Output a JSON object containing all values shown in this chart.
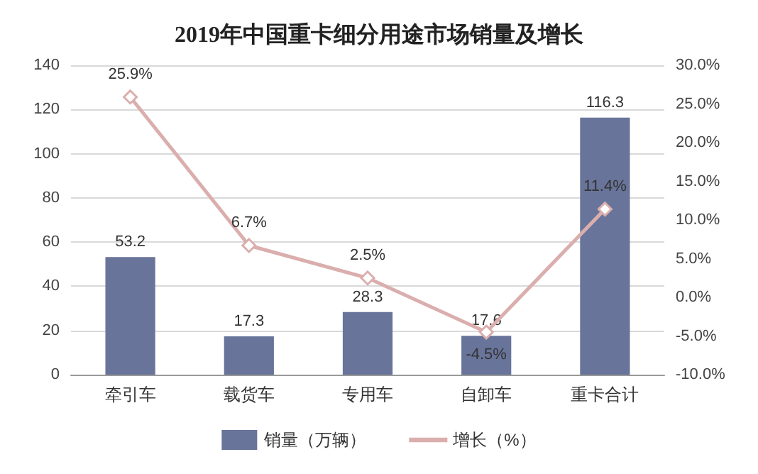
{
  "chart_data": {
    "type": "bar",
    "title": "2019年中国重卡细分用途市场销量及增长",
    "categories": [
      "牵引车",
      "载货车",
      "专用车",
      "自卸车",
      "重卡合计"
    ],
    "series": [
      {
        "name": "销量（万辆）",
        "color": "#68749a",
        "values": [
          53.2,
          17.3,
          28.3,
          17.6,
          116.3
        ],
        "value_labels": [
          "53.2",
          "17.3",
          "28.3",
          "17.6",
          "116.3"
        ]
      },
      {
        "name": "增长（%）",
        "type": "line",
        "axis": "y2",
        "color": "#dbaeae",
        "values": [
          25.9,
          6.7,
          2.5,
          -4.5,
          11.4
        ],
        "value_labels": [
          "25.9%",
          "6.7%",
          "2.5%",
          "-4.5%",
          "11.4%"
        ]
      }
    ],
    "ylim": [
      0,
      140
    ],
    "yticks": [
      0,
      20,
      40,
      60,
      80,
      100,
      120,
      140
    ],
    "y2lim": [
      -10,
      30
    ],
    "y2ticks": [
      {
        "value": -10,
        "label": "-10.0%"
      },
      {
        "value": -5,
        "label": "-5.0%"
      },
      {
        "value": 0,
        "label": "0.0%"
      },
      {
        "value": 5,
        "label": "5.0%"
      },
      {
        "value": 10,
        "label": "10.0%"
      },
      {
        "value": 15,
        "label": "15.0%"
      },
      {
        "value": 20,
        "label": "20.0%"
      },
      {
        "value": 25,
        "label": "25.0%"
      },
      {
        "value": 30,
        "label": "30.0%"
      }
    ],
    "grid": true,
    "legend": "bottom",
    "marker": "diamond"
  }
}
